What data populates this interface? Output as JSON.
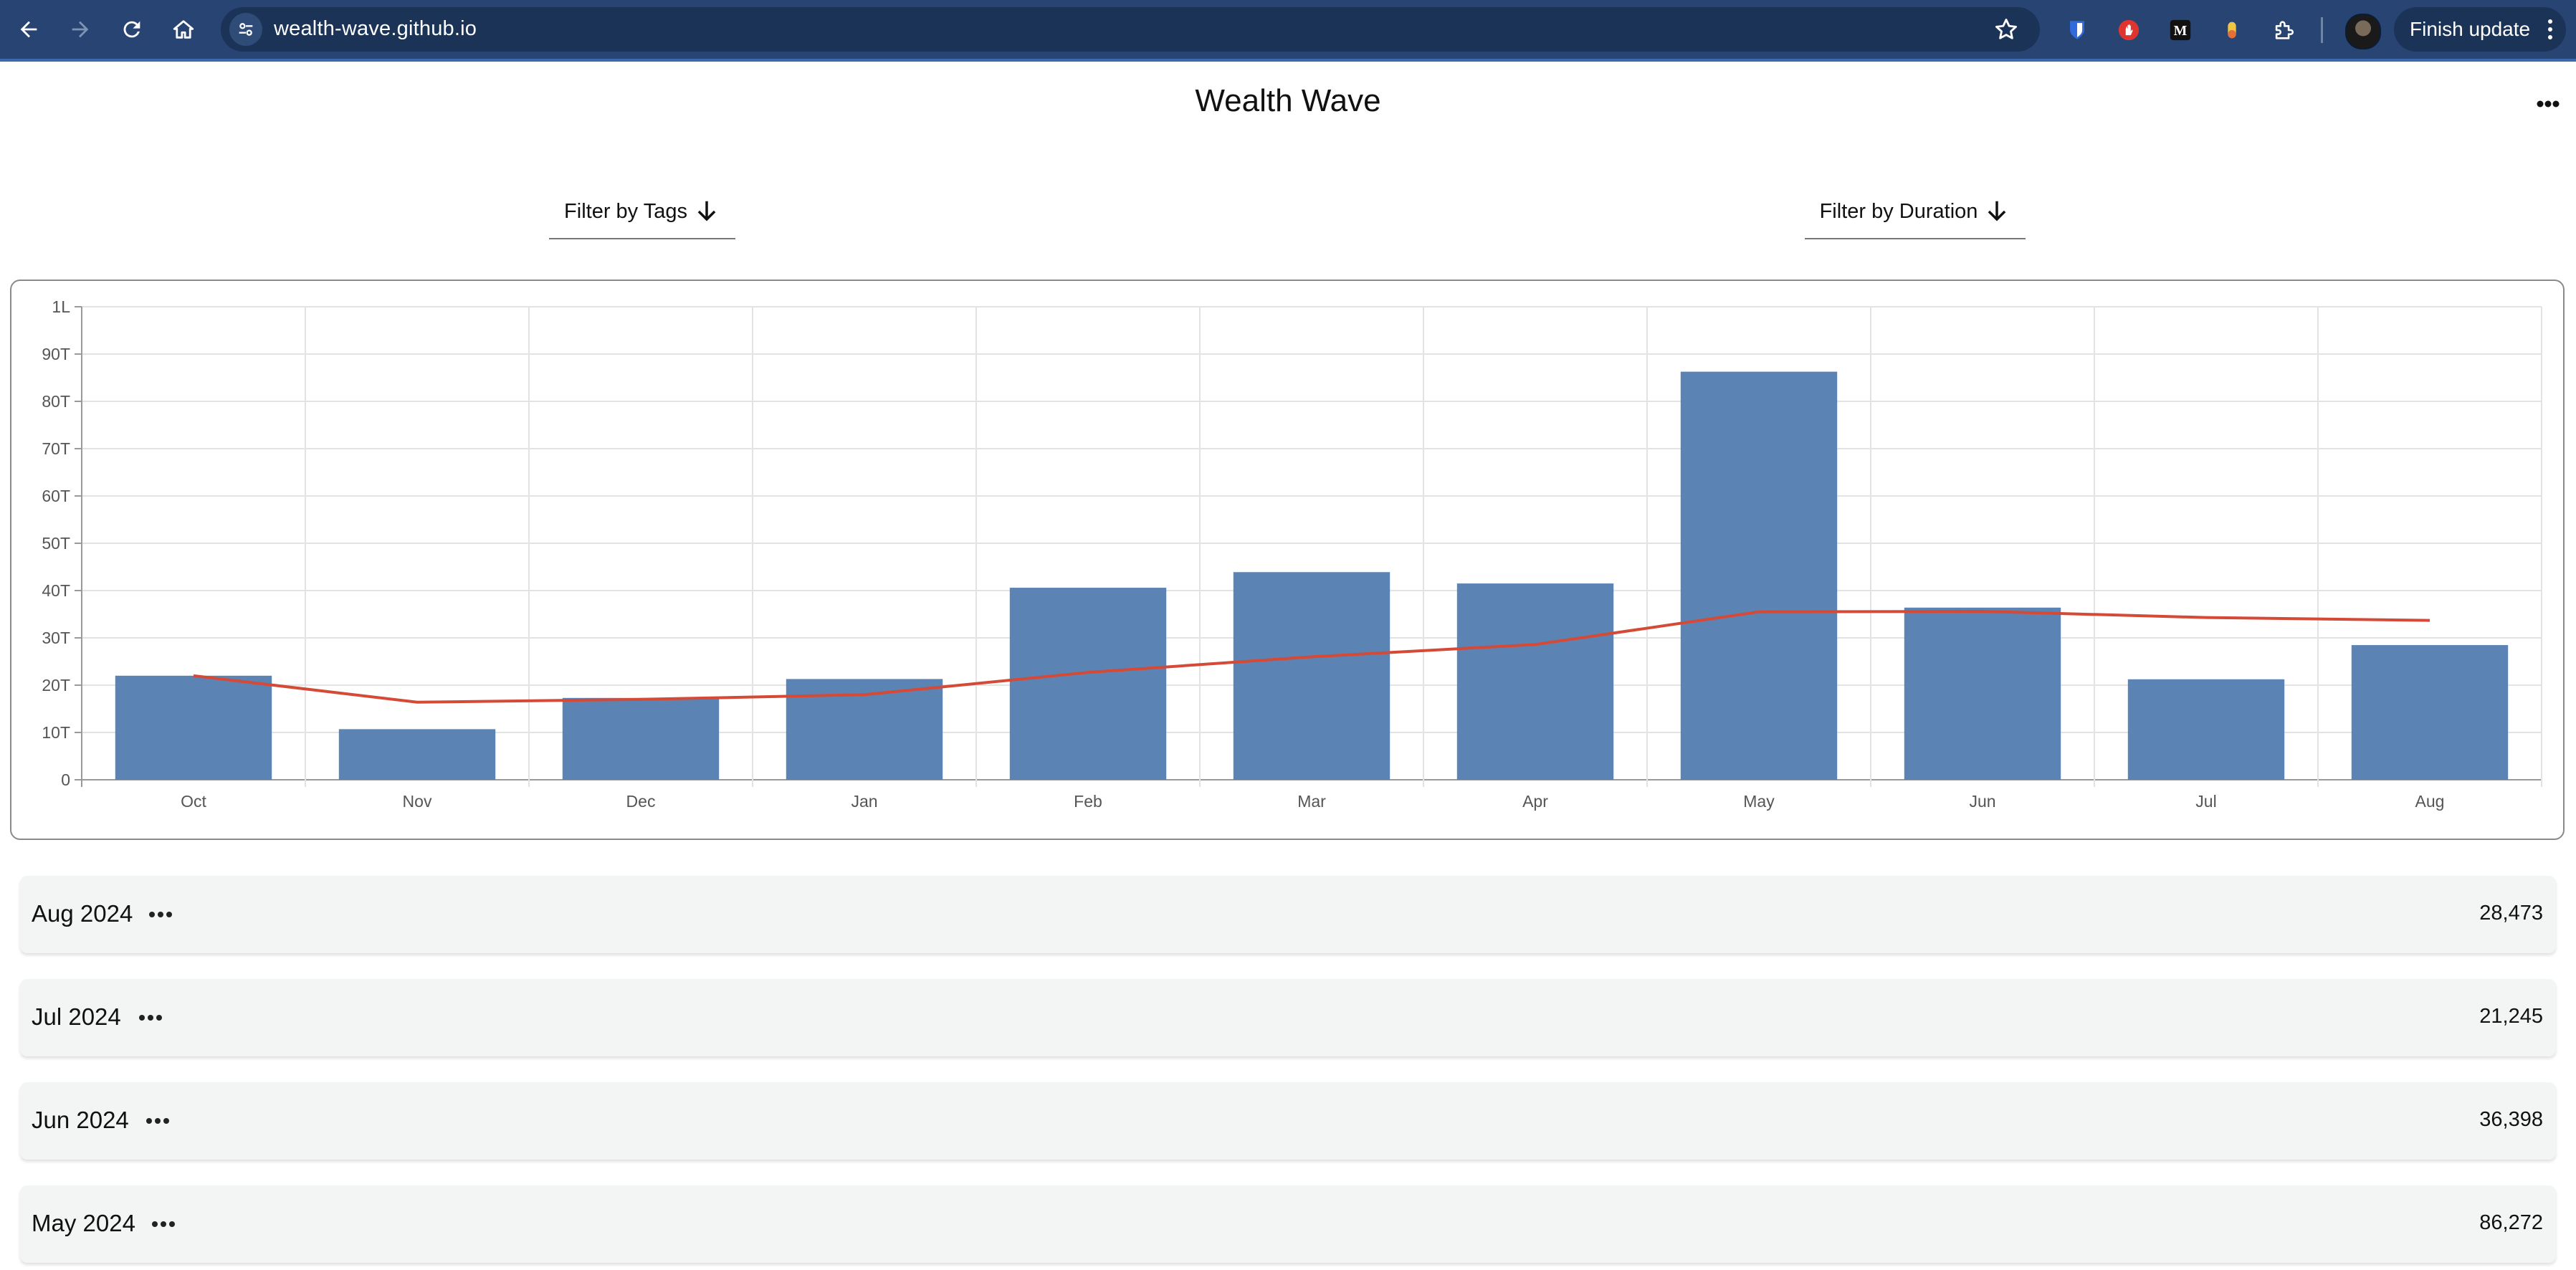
{
  "browser": {
    "url": "wealth-wave.github.io",
    "finish_update_label": "Finish update",
    "accent": "#274473"
  },
  "app": {
    "title": "Wealth Wave",
    "filter_tags_label": "Filter by Tags",
    "filter_duration_label": "Filter by Duration"
  },
  "chart_data": {
    "type": "bar",
    "categories": [
      "Oct",
      "Nov",
      "Dec",
      "Jan",
      "Feb",
      "Mar",
      "Apr",
      "May",
      "Jun",
      "Jul",
      "Aug"
    ],
    "ytick_labels": [
      "0",
      "10T",
      "20T",
      "30T",
      "40T",
      "50T",
      "60T",
      "70T",
      "80T",
      "90T",
      "1L"
    ],
    "ylim": [
      0,
      100000
    ],
    "grid": true,
    "series": [
      {
        "kind": "bar",
        "color": "#5b84b5",
        "values": [
          22000,
          10700,
          17300,
          21300,
          40600,
          43900,
          41500,
          86272,
          36398,
          21245,
          28473
        ]
      },
      {
        "kind": "line",
        "color": "#d44a36",
        "values": [
          22000,
          16400,
          17000,
          18000,
          22700,
          26000,
          28600,
          35500,
          35600,
          34300,
          33700
        ]
      }
    ]
  },
  "months": [
    {
      "label": "Aug 2024",
      "value": "28,473"
    },
    {
      "label": "Jul 2024",
      "value": "21,245"
    },
    {
      "label": "Jun 2024",
      "value": "36,398"
    },
    {
      "label": "May 2024",
      "value": "86,272"
    }
  ]
}
